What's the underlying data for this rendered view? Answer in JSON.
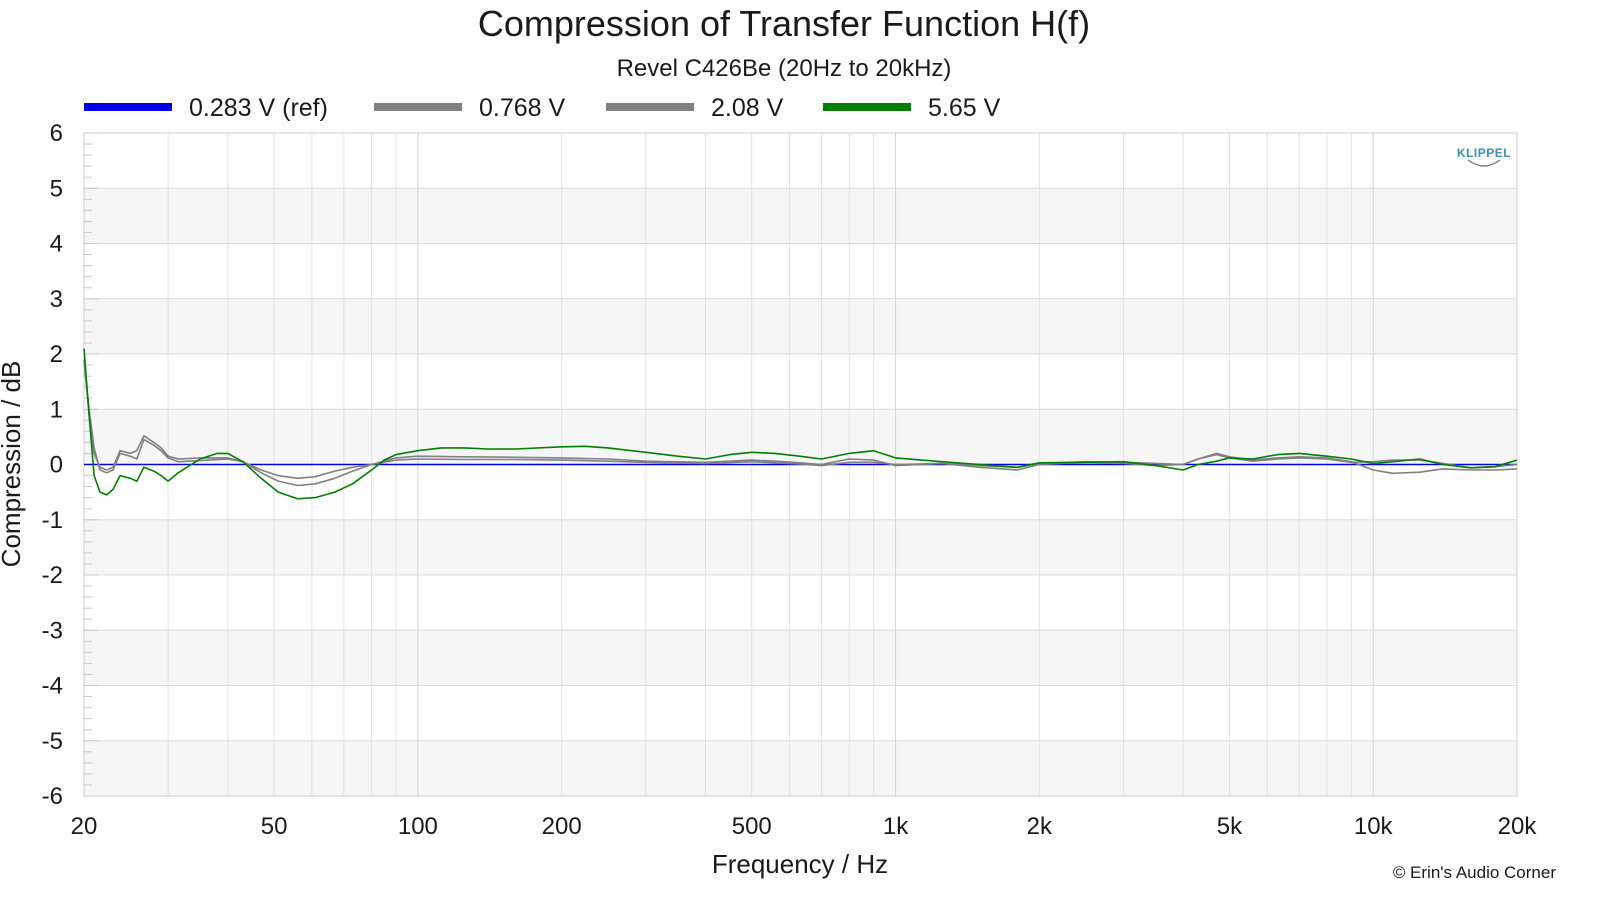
{
  "chart_data": {
    "type": "line",
    "title": "Compression of Transfer Function H(f)",
    "subtitle": "Revel C426Be (20Hz to 20kHz)",
    "xlabel": "Frequency / Hz",
    "ylabel": "Compression / dB",
    "xscale": "log",
    "xlim": [
      20,
      20000
    ],
    "ylim": [
      -6,
      6
    ],
    "x_ticks": [
      20,
      50,
      100,
      200,
      500,
      1000,
      2000,
      5000,
      10000,
      20000
    ],
    "x_tick_labels": [
      "20",
      "50",
      "100",
      "200",
      "500",
      "1k",
      "2k",
      "5k",
      "10k",
      "20k"
    ],
    "y_ticks": [
      6,
      5,
      4,
      3,
      2,
      1,
      0,
      -1,
      -2,
      -3,
      -4,
      -5,
      -6
    ],
    "y_tick_labels": [
      "6",
      "5",
      "4",
      "3",
      "2",
      "1",
      "0",
      "-1",
      "-2",
      "-3",
      "-4",
      "-5",
      "-6"
    ],
    "grid": true,
    "legend_position": "top",
    "brand": "KLIPPEL",
    "credit": "© Erin's Audio Corner",
    "series": [
      {
        "name": "0.283 V (ref)",
        "color": "#0000e6",
        "points": [
          [
            20,
            0
          ],
          [
            20000,
            0
          ]
        ]
      },
      {
        "name": "0.768 V",
        "color": "#808080",
        "points": [
          [
            20,
            1.9
          ],
          [
            20.5,
            1.0
          ],
          [
            21,
            0.3
          ],
          [
            21.6,
            -0.1
          ],
          [
            22.3,
            -0.15
          ],
          [
            23,
            -0.1
          ],
          [
            23.8,
            0.2
          ],
          [
            25,
            0.15
          ],
          [
            25.8,
            0.1
          ],
          [
            26.7,
            0.45
          ],
          [
            28,
            0.35
          ],
          [
            29,
            0.25
          ],
          [
            30,
            0.12
          ],
          [
            31.5,
            0.05
          ],
          [
            35,
            0.07
          ],
          [
            40,
            0.1
          ],
          [
            43,
            0.05
          ],
          [
            47,
            -0.1
          ],
          [
            51,
            -0.2
          ],
          [
            56,
            -0.25
          ],
          [
            61,
            -0.22
          ],
          [
            67,
            -0.12
          ],
          [
            73,
            -0.05
          ],
          [
            80,
            0.0
          ],
          [
            90,
            0.08
          ],
          [
            100,
            0.1
          ],
          [
            125,
            0.09
          ],
          [
            160,
            0.09
          ],
          [
            200,
            0.08
          ],
          [
            250,
            0.06
          ],
          [
            300,
            0.04
          ],
          [
            400,
            0.02
          ],
          [
            500,
            0.05
          ],
          [
            560,
            0.03
          ],
          [
            630,
            0.01
          ],
          [
            700,
            -0.02
          ],
          [
            800,
            0.04
          ],
          [
            900,
            0.04
          ],
          [
            1000,
            0.0
          ],
          [
            1250,
            0.02
          ],
          [
            1500,
            -0.02
          ],
          [
            1800,
            -0.05
          ],
          [
            2000,
            0.02
          ],
          [
            2500,
            0.05
          ],
          [
            3000,
            0.04
          ],
          [
            3500,
            0.02
          ],
          [
            4000,
            0.0
          ],
          [
            4300,
            0.1
          ],
          [
            4700,
            0.18
          ],
          [
            5000,
            0.12
          ],
          [
            5600,
            0.06
          ],
          [
            6300,
            0.1
          ],
          [
            7000,
            0.12
          ],
          [
            8000,
            0.1
          ],
          [
            9000,
            0.04
          ],
          [
            10000,
            0.05
          ],
          [
            11000,
            0.08
          ],
          [
            12500,
            0.08
          ],
          [
            14000,
            0.02
          ],
          [
            16000,
            -0.06
          ],
          [
            18000,
            -0.04
          ],
          [
            20000,
            0.0
          ]
        ]
      },
      {
        "name": "2.08 V",
        "color": "#808080",
        "points": [
          [
            20,
            1.9
          ],
          [
            20.5,
            0.9
          ],
          [
            21,
            0.2
          ],
          [
            21.6,
            -0.05
          ],
          [
            22.3,
            -0.1
          ],
          [
            23,
            -0.05
          ],
          [
            23.8,
            0.25
          ],
          [
            25,
            0.2
          ],
          [
            25.8,
            0.25
          ],
          [
            26.7,
            0.52
          ],
          [
            28,
            0.4
          ],
          [
            29,
            0.3
          ],
          [
            30,
            0.15
          ],
          [
            31.5,
            0.1
          ],
          [
            35,
            0.12
          ],
          [
            40,
            0.12
          ],
          [
            43,
            0.05
          ],
          [
            47,
            -0.15
          ],
          [
            51,
            -0.3
          ],
          [
            56,
            -0.38
          ],
          [
            61,
            -0.35
          ],
          [
            67,
            -0.25
          ],
          [
            73,
            -0.12
          ],
          [
            80,
            0.0
          ],
          [
            90,
            0.12
          ],
          [
            100,
            0.15
          ],
          [
            125,
            0.14
          ],
          [
            160,
            0.13
          ],
          [
            200,
            0.12
          ],
          [
            250,
            0.1
          ],
          [
            300,
            0.06
          ],
          [
            400,
            0.04
          ],
          [
            500,
            0.08
          ],
          [
            560,
            0.06
          ],
          [
            630,
            0.03
          ],
          [
            700,
            0.0
          ],
          [
            800,
            0.1
          ],
          [
            900,
            0.08
          ],
          [
            1000,
            -0.02
          ],
          [
            1250,
            0.02
          ],
          [
            1500,
            -0.05
          ],
          [
            1800,
            -0.1
          ],
          [
            2000,
            0.0
          ],
          [
            2500,
            0.04
          ],
          [
            3000,
            0.02
          ],
          [
            3500,
            -0.02
          ],
          [
            4000,
            0.0
          ],
          [
            4300,
            0.1
          ],
          [
            4700,
            0.2
          ],
          [
            5000,
            0.14
          ],
          [
            5600,
            0.08
          ],
          [
            6300,
            0.12
          ],
          [
            7000,
            0.14
          ],
          [
            8000,
            0.12
          ],
          [
            9000,
            0.05
          ],
          [
            10000,
            -0.1
          ],
          [
            11000,
            -0.16
          ],
          [
            12500,
            -0.14
          ],
          [
            14000,
            -0.08
          ],
          [
            16000,
            -0.1
          ],
          [
            18000,
            -0.1
          ],
          [
            20000,
            -0.08
          ]
        ]
      },
      {
        "name": "5.65 V",
        "color": "#008000",
        "points": [
          [
            20,
            2.1
          ],
          [
            20.5,
            0.9
          ],
          [
            21,
            -0.2
          ],
          [
            21.6,
            -0.5
          ],
          [
            22.3,
            -0.55
          ],
          [
            23,
            -0.45
          ],
          [
            23.8,
            -0.2
          ],
          [
            25,
            -0.25
          ],
          [
            25.8,
            -0.3
          ],
          [
            26.7,
            -0.05
          ],
          [
            28,
            -0.12
          ],
          [
            29,
            -0.2
          ],
          [
            30,
            -0.3
          ],
          [
            31.5,
            -0.15
          ],
          [
            35,
            0.1
          ],
          [
            38,
            0.2
          ],
          [
            40,
            0.2
          ],
          [
            43,
            0.05
          ],
          [
            47,
            -0.25
          ],
          [
            51,
            -0.5
          ],
          [
            56,
            -0.62
          ],
          [
            61,
            -0.6
          ],
          [
            67,
            -0.5
          ],
          [
            73,
            -0.35
          ],
          [
            80,
            -0.1
          ],
          [
            85,
            0.08
          ],
          [
            90,
            0.18
          ],
          [
            100,
            0.25
          ],
          [
            112,
            0.3
          ],
          [
            125,
            0.3
          ],
          [
            140,
            0.28
          ],
          [
            160,
            0.28
          ],
          [
            200,
            0.32
          ],
          [
            224,
            0.33
          ],
          [
            250,
            0.3
          ],
          [
            300,
            0.22
          ],
          [
            350,
            0.15
          ],
          [
            400,
            0.1
          ],
          [
            450,
            0.18
          ],
          [
            500,
            0.22
          ],
          [
            560,
            0.2
          ],
          [
            630,
            0.15
          ],
          [
            700,
            0.1
          ],
          [
            800,
            0.2
          ],
          [
            900,
            0.25
          ],
          [
            1000,
            0.12
          ],
          [
            1250,
            0.05
          ],
          [
            1500,
            0.0
          ],
          [
            1800,
            -0.05
          ],
          [
            2000,
            0.03
          ],
          [
            2500,
            0.04
          ],
          [
            3000,
            0.05
          ],
          [
            3500,
            -0.02
          ],
          [
            4000,
            -0.1
          ],
          [
            4300,
            0.0
          ],
          [
            4700,
            0.06
          ],
          [
            5000,
            0.12
          ],
          [
            5600,
            0.1
          ],
          [
            6300,
            0.18
          ],
          [
            7000,
            0.2
          ],
          [
            8000,
            0.15
          ],
          [
            9000,
            0.1
          ],
          [
            10000,
            0.02
          ],
          [
            11000,
            0.05
          ],
          [
            12500,
            0.1
          ],
          [
            14000,
            0.0
          ],
          [
            16000,
            -0.06
          ],
          [
            18000,
            -0.04
          ],
          [
            20000,
            0.08
          ]
        ]
      }
    ]
  }
}
